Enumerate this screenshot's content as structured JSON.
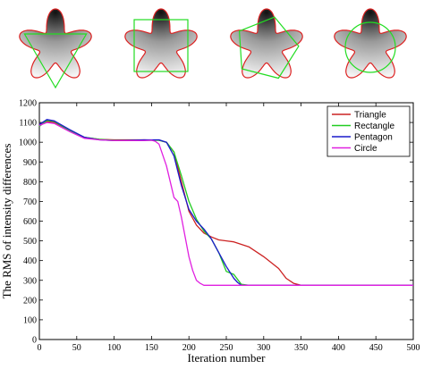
{
  "chart_data": {
    "type": "line",
    "title": "",
    "xlabel": "Iteration number",
    "ylabel": "The RMS of intensity differences",
    "xlim": [
      0,
      500
    ],
    "ylim": [
      0,
      1200
    ],
    "xticks": [
      0,
      50,
      100,
      150,
      200,
      250,
      300,
      350,
      400,
      450,
      500
    ],
    "yticks": [
      0,
      100,
      200,
      300,
      400,
      500,
      600,
      700,
      800,
      900,
      1000,
      1100,
      1200
    ],
    "grid": false,
    "legend_position": "top-right",
    "series": [
      {
        "name": "Triangle",
        "color": "#cc2222",
        "x": [
          0,
          10,
          20,
          40,
          60,
          80,
          100,
          120,
          140,
          160,
          170,
          180,
          190,
          200,
          210,
          220,
          230,
          240,
          260,
          280,
          300,
          320,
          330,
          340,
          350,
          400,
          450,
          500
        ],
        "y": [
          1090,
          1105,
          1100,
          1060,
          1025,
          1015,
          1012,
          1012,
          1012,
          1010,
          1000,
          950,
          800,
          650,
          580,
          540,
          520,
          505,
          495,
          470,
          420,
          360,
          310,
          285,
          275,
          275,
          275,
          275
        ]
      },
      {
        "name": "Rectangle",
        "color": "#22cc22",
        "x": [
          0,
          10,
          20,
          40,
          60,
          80,
          100,
          120,
          140,
          160,
          170,
          180,
          190,
          200,
          210,
          220,
          230,
          240,
          250,
          260,
          270,
          280,
          300,
          400,
          500
        ],
        "y": [
          1080,
          1110,
          1105,
          1060,
          1025,
          1015,
          1010,
          1010,
          1010,
          1010,
          1000,
          950,
          830,
          700,
          610,
          550,
          510,
          440,
          345,
          330,
          280,
          275,
          275,
          275,
          275
        ]
      },
      {
        "name": "Pentagon",
        "color": "#1a1acc",
        "x": [
          0,
          10,
          20,
          40,
          60,
          80,
          100,
          120,
          140,
          160,
          170,
          180,
          190,
          200,
          210,
          220,
          230,
          240,
          250,
          260,
          265,
          270,
          280,
          300,
          400,
          500
        ],
        "y": [
          1090,
          1115,
          1108,
          1065,
          1025,
          1012,
          1008,
          1010,
          1012,
          1012,
          1000,
          930,
          780,
          660,
          600,
          560,
          510,
          440,
          370,
          310,
          290,
          275,
          275,
          275,
          275,
          275
        ]
      },
      {
        "name": "Circle",
        "color": "#e020e0",
        "x": [
          0,
          10,
          20,
          40,
          60,
          80,
          100,
          120,
          140,
          150,
          155,
          160,
          170,
          175,
          180,
          185,
          190,
          195,
          200,
          205,
          210,
          215,
          220,
          230,
          250,
          300,
          400,
          500
        ],
        "y": [
          1085,
          1100,
          1095,
          1055,
          1020,
          1012,
          1008,
          1008,
          1008,
          1010,
          1005,
          990,
          880,
          800,
          720,
          700,
          620,
          520,
          420,
          350,
          300,
          285,
          275,
          275,
          275,
          275,
          275,
          275
        ]
      }
    ]
  },
  "shapes": {
    "count": 4,
    "flower_outline_color": "#dd2222",
    "init_contour_color": "#22dd22",
    "init_contours": [
      "triangle",
      "rectangle",
      "pentagon",
      "circle"
    ]
  }
}
